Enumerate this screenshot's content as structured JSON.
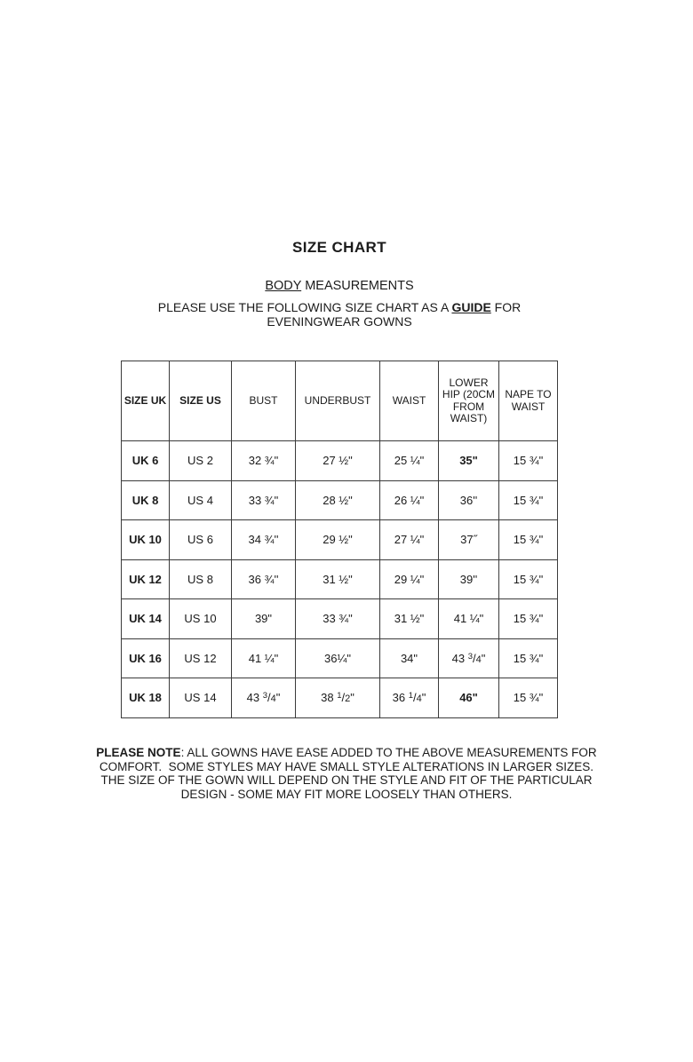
{
  "header": {
    "title": "SIZE CHART",
    "subtitle_underlined": "BODY",
    "subtitle_rest": " MEASUREMENTS",
    "guide_pre": "PLEASE USE THE FOLLOWING SIZE CHART AS A ",
    "guide_emphasis": "GUIDE",
    "guide_post": " FOR EVENINGWEAR GOWNS"
  },
  "table": {
    "headers": [
      "SIZE UK",
      "SIZE US",
      "BUST",
      "UNDERBUST",
      "WAIST",
      "LOWER HIP (20CM FROM WAIST)",
      "NAPE TO WAIST"
    ],
    "rows": [
      [
        "UK 6",
        "US 2",
        "32 ¾\"",
        "27 ½\"",
        "25 ¼\"",
        "35\"",
        "15 ¾\""
      ],
      [
        "UK 8",
        "US 4",
        "33 ¾\"",
        "28 ½\"",
        "26 ¼\"",
        "36''",
        "15 ¾\""
      ],
      [
        "UK 10",
        "US 6",
        "34 ¾''",
        "29 ½\"",
        "27 ¼\"",
        "37˝",
        "15 ¾\""
      ],
      [
        "UK 12",
        "US 8",
        "36 ¾''",
        "31 ½\"",
        "29 ¼\"",
        "39''",
        "15 ¾\""
      ],
      [
        "UK 14",
        "US 10",
        "39\"",
        "33 ¾\"",
        "31 ½\"",
        "41 ¼\"",
        "15 ¾\""
      ],
      [
        "UK 16",
        "US 12",
        "41 ¼\"",
        "36¼\"",
        "34\"",
        "43 3/4\"",
        "15 ¾\""
      ],
      [
        "UK 18",
        "US 14",
        "43 3/4\"",
        "38 1/2\"",
        "36 1/4\"",
        "46\"",
        "15 ¾\""
      ]
    ]
  },
  "note": {
    "emphasis": "PLEASE NOTE",
    "text": ": ALL GOWNS HAVE EASE ADDED TO THE ABOVE MEASUREMENTS FOR COMFORT.  SOME STYLES MAY HAVE SMALL STYLE ALTERATIONS IN LARGER SIZES.  THE SIZE OF THE GOWN WILL DEPEND ON THE STYLE AND FIT OF THE PARTICULAR DESIGN - SOME MAY FIT MORE LOOSELY THAN OTHERS."
  }
}
